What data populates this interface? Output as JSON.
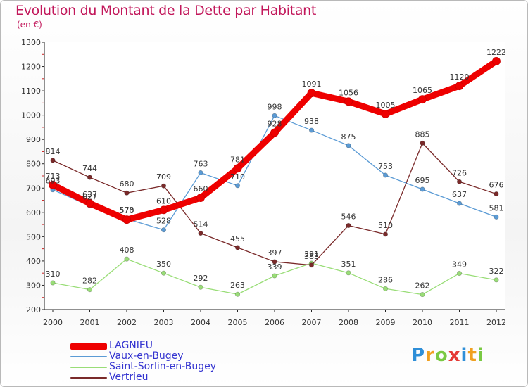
{
  "title": "Evolution du Montant de la Dette par Habitant",
  "subtitle": "(en €)",
  "logo": {
    "letters": [
      "P",
      "r",
      "o",
      "x",
      "i",
      "t",
      "i"
    ],
    "colors": [
      "#2f8fd8",
      "#f0a020",
      "#7ac943",
      "#e53935",
      "#2f8fd8",
      "#f0a020",
      "#7ac943"
    ]
  },
  "chart_data": {
    "type": "line",
    "title": "Evolution du Montant de la Dette par Habitant",
    "subtitle": "(en €)",
    "xlabel": "",
    "ylabel": "",
    "x": [
      "2000",
      "2001",
      "2002",
      "2003",
      "2004",
      "2005",
      "2006",
      "2007",
      "2008",
      "2009",
      "2010",
      "2011",
      "2012"
    ],
    "ylim": [
      200,
      1300
    ],
    "yticks": [
      "200",
      "300",
      "400",
      "500",
      "600",
      "700",
      "800",
      "900",
      "1000",
      "1100",
      "1200",
      "1300"
    ],
    "grid": false,
    "legend_position": "bottom-left",
    "series": [
      {
        "name": "LAGNIEU",
        "color": "#ee0000",
        "values": [
          713,
          637,
          570,
          610,
          660,
          781,
          928,
          1091,
          1056,
          1005,
          1065,
          1120,
          1222
        ],
        "labels": [
          "713",
          "637",
          "570",
          "610",
          "660",
          "781",
          "928",
          "1091",
          "1056",
          "1005",
          "1065",
          "1120",
          "1222"
        ]
      },
      {
        "name": "Vaux-en-Bugey",
        "color": "#5b9bd5",
        "values": [
          693,
          627,
          573,
          528,
          763,
          710,
          998,
          938,
          875,
          753,
          695,
          637,
          581
        ],
        "labels": [
          "693",
          "627",
          "573",
          "528",
          "763",
          "710",
          "998",
          "938",
          "875",
          "753",
          "695",
          "637",
          "581"
        ]
      },
      {
        "name": "Saint-Sorlin-en-Bugey",
        "color": "#99dd77",
        "values": [
          310,
          282,
          408,
          350,
          292,
          263,
          339,
          391,
          351,
          286,
          262,
          349,
          322
        ],
        "labels": [
          "310",
          "282",
          "408",
          "350",
          "292",
          "263",
          "339",
          "391",
          "351",
          "286",
          "262",
          "349",
          "322"
        ]
      },
      {
        "name": "Vertrieu",
        "color": "#7a2a2a",
        "values": [
          814,
          744,
          680,
          709,
          514,
          455,
          397,
          383,
          546,
          510,
          885,
          726,
          676
        ],
        "labels": [
          "814",
          "744",
          "680",
          "709",
          "514",
          "455",
          "397",
          "383",
          "546",
          "510",
          "885",
          "726",
          "676"
        ]
      }
    ]
  }
}
